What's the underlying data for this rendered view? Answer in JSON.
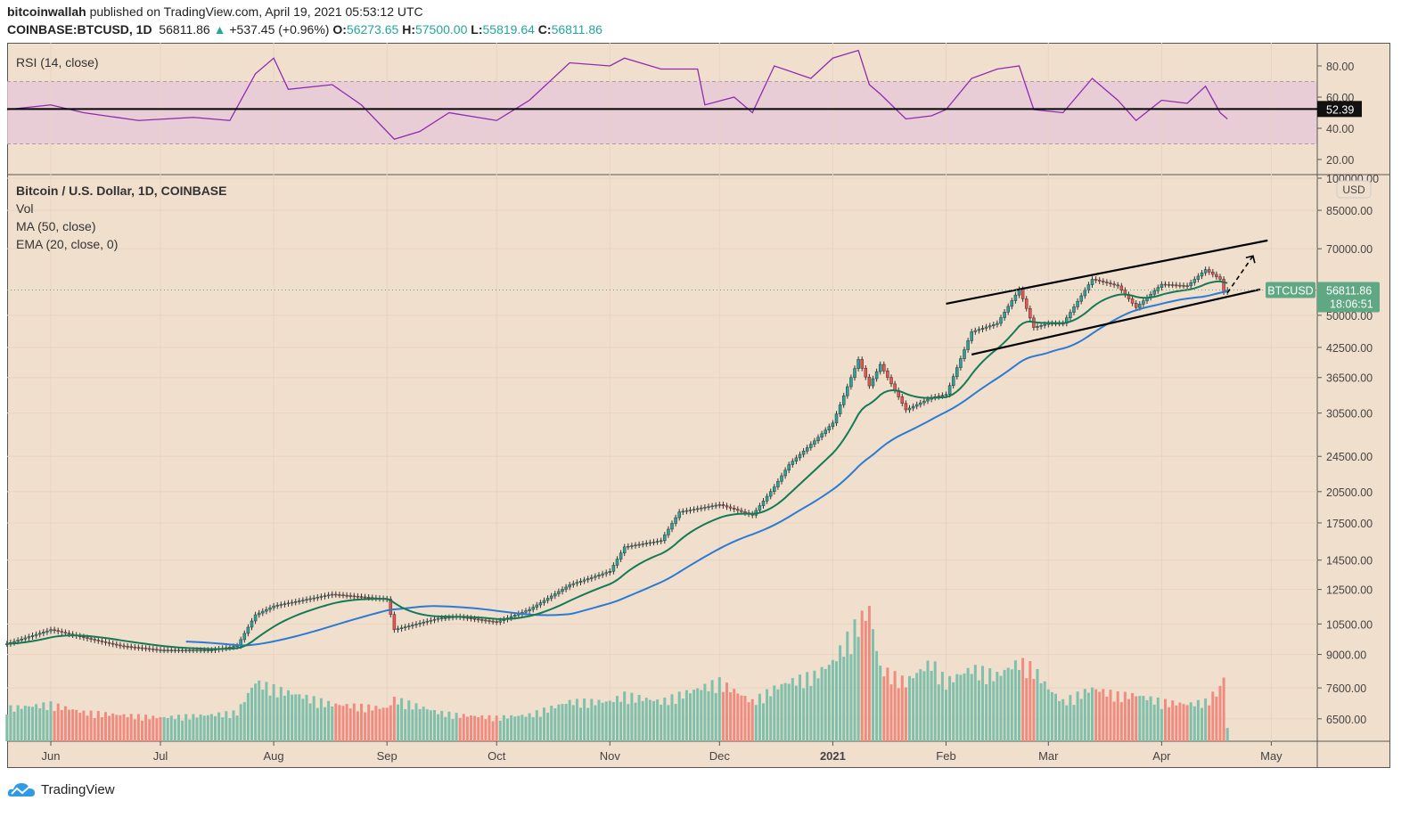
{
  "header": {
    "author": "bitcoinwallah",
    "published": " published on TradingView.com, April 19, 2021 05:53:12 UTC",
    "symbol": "COINBASE:BTCUSD, 1D",
    "last": "56811.86",
    "change": "+537.45 (+0.96%)",
    "o_label": "O:",
    "o": "56273.65",
    "h_label": "H:",
    "h": "57500.00",
    "l_label": "L:",
    "l": "55819.64",
    "c_label": "C:",
    "c": "56811.86"
  },
  "footer": {
    "brand": "TradingView"
  },
  "colors": {
    "background": "#f1dfcd",
    "up": "#26a69a",
    "down": "#ef5350",
    "vol_up": "#7fc0ad",
    "vol_down": "#ef8c80",
    "ma": "#2a7bd4",
    "ema": "#137a56",
    "rsi": "#8e2bb0",
    "rsi_band": "#e6c8d8",
    "last_price": "#5fa883"
  },
  "chart_data": [
    {
      "type": "line",
      "title": "RSI (14, close)",
      "ylim": [
        10,
        95
      ],
      "yticks": [
        "80.00",
        "60.00",
        "40.00",
        "20.00"
      ],
      "ytick_values": [
        80,
        60,
        40,
        20
      ],
      "band": [
        30,
        70
      ],
      "hline": 52.39,
      "hline_label": "52.39",
      "x": [
        "2020-05-20",
        "2020-06-01",
        "2020-06-10",
        "2020-06-25",
        "2020-07-10",
        "2020-07-20",
        "2020-07-27",
        "2020-08-01",
        "2020-08-05",
        "2020-08-17",
        "2020-08-25",
        "2020-09-03",
        "2020-09-10",
        "2020-09-18",
        "2020-10-01",
        "2020-10-10",
        "2020-10-21",
        "2020-11-01",
        "2020-11-05",
        "2020-11-15",
        "2020-11-25",
        "2020-11-27",
        "2020-12-05",
        "2020-12-10",
        "2020-12-16",
        "2020-12-26",
        "2021-01-01",
        "2021-01-08",
        "2021-01-11",
        "2021-01-14",
        "2021-01-21",
        "2021-01-28",
        "2021-02-01",
        "2021-02-08",
        "2021-02-15",
        "2021-02-21",
        "2021-02-25",
        "2021-03-05",
        "2021-03-13",
        "2021-03-20",
        "2021-03-25",
        "2021-04-01",
        "2021-04-08",
        "2021-04-13",
        "2021-04-17",
        "2021-04-19"
      ],
      "values": [
        52,
        55,
        50,
        45,
        47,
        45,
        75,
        85,
        65,
        68,
        55,
        33,
        38,
        50,
        45,
        58,
        82,
        80,
        85,
        78,
        78,
        55,
        60,
        50,
        80,
        72,
        85,
        90,
        68,
        62,
        46,
        48,
        52,
        72,
        78,
        80,
        52,
        50,
        72,
        58,
        45,
        58,
        56,
        67,
        50,
        46
      ]
    },
    {
      "type": "candlestick",
      "title": "Bitcoin / U.S. Dollar, 1D, COINBASE",
      "legend": [
        "Vol",
        "MA (50, close)",
        "EMA (20, close, 0)"
      ],
      "scale": "log",
      "currency": "USD",
      "ylim": [
        6000,
        100000
      ],
      "yticks": [
        "100000.00",
        "85000.00",
        "70000.00",
        "50000.00",
        "42500.00",
        "36500.00",
        "30500.00",
        "24500.00",
        "20500.00",
        "17500.00",
        "14500.00",
        "12500.00",
        "10500.00",
        "9000.00",
        "7600.00",
        "6500.00"
      ],
      "ytick_values": [
        100000,
        85000,
        70000,
        50000,
        42500,
        36500,
        30500,
        24500,
        20500,
        17500,
        14500,
        12500,
        10500,
        9000,
        7600,
        6500
      ],
      "xticks": [
        "Jun",
        "Jul",
        "Aug",
        "Sep",
        "Oct",
        "Nov",
        "Dec",
        "2021",
        "Feb",
        "Mar",
        "Apr",
        "May"
      ],
      "xtick_dates": [
        "2020-06-01",
        "2020-07-01",
        "2020-08-01",
        "2020-09-01",
        "2020-10-01",
        "2020-11-01",
        "2020-12-01",
        "2021-01-01",
        "2021-02-01",
        "2021-03-01",
        "2021-04-01",
        "2021-05-01"
      ],
      "last_price": 56811.86,
      "last_label": "BTCUSD",
      "last_value": "56811.86",
      "countdown": "18:06:51",
      "x": [
        "2020-05-20",
        "2020-06-01",
        "2020-06-10",
        "2020-06-20",
        "2020-07-01",
        "2020-07-15",
        "2020-07-22",
        "2020-07-27",
        "2020-08-01",
        "2020-08-17",
        "2020-09-01",
        "2020-09-03",
        "2020-09-15",
        "2020-09-20",
        "2020-10-01",
        "2020-10-10",
        "2020-10-21",
        "2020-11-01",
        "2020-11-05",
        "2020-11-15",
        "2020-11-20",
        "2020-12-01",
        "2020-12-10",
        "2020-12-16",
        "2020-12-20",
        "2020-12-27",
        "2021-01-01",
        "2021-01-08",
        "2021-01-11",
        "2021-01-14",
        "2021-01-21",
        "2021-01-28",
        "2021-02-01",
        "2021-02-08",
        "2021-02-15",
        "2021-02-21",
        "2021-02-25",
        "2021-03-01",
        "2021-03-05",
        "2021-03-13",
        "2021-03-20",
        "2021-03-25",
        "2021-04-01",
        "2021-04-08",
        "2021-04-13",
        "2021-04-17",
        "2021-04-18",
        "2021-04-19"
      ],
      "close": [
        9500,
        10200,
        9800,
        9400,
        9200,
        9200,
        9400,
        11000,
        11500,
        12200,
        11900,
        10200,
        10800,
        10900,
        10600,
        11300,
        12800,
        13700,
        15500,
        16000,
        18500,
        19200,
        18200,
        21000,
        23500,
        26500,
        29000,
        40000,
        35000,
        39000,
        31000,
        33000,
        33500,
        46000,
        48000,
        57000,
        47000,
        48000,
        48000,
        60000,
        58000,
        52000,
        58500,
        58000,
        63000,
        60000,
        56273.65,
        56811.86
      ],
      "volume_relative": [
        25,
        28,
        22,
        20,
        18,
        20,
        22,
        45,
        40,
        28,
        25,
        32,
        22,
        20,
        18,
        20,
        30,
        30,
        35,
        30,
        35,
        45,
        30,
        40,
        45,
        50,
        60,
        90,
        100,
        55,
        45,
        60,
        45,
        55,
        50,
        60,
        55,
        40,
        30,
        40,
        35,
        35,
        30,
        28,
        30,
        40,
        50,
        10
      ]
    },
    {
      "type": "annotation",
      "trendlines": [
        {
          "from": [
            "2021-02-08",
            41000
          ],
          "to": [
            "2021-04-28",
            57000
          ]
        },
        {
          "from": [
            "2021-02-01",
            53000
          ],
          "to": [
            "2021-04-30",
            73000
          ]
        }
      ],
      "arrow": {
        "from": [
          "2021-04-19",
          56000
        ],
        "to": [
          "2021-04-26",
          67500
        ],
        "style": "dashed"
      }
    }
  ]
}
